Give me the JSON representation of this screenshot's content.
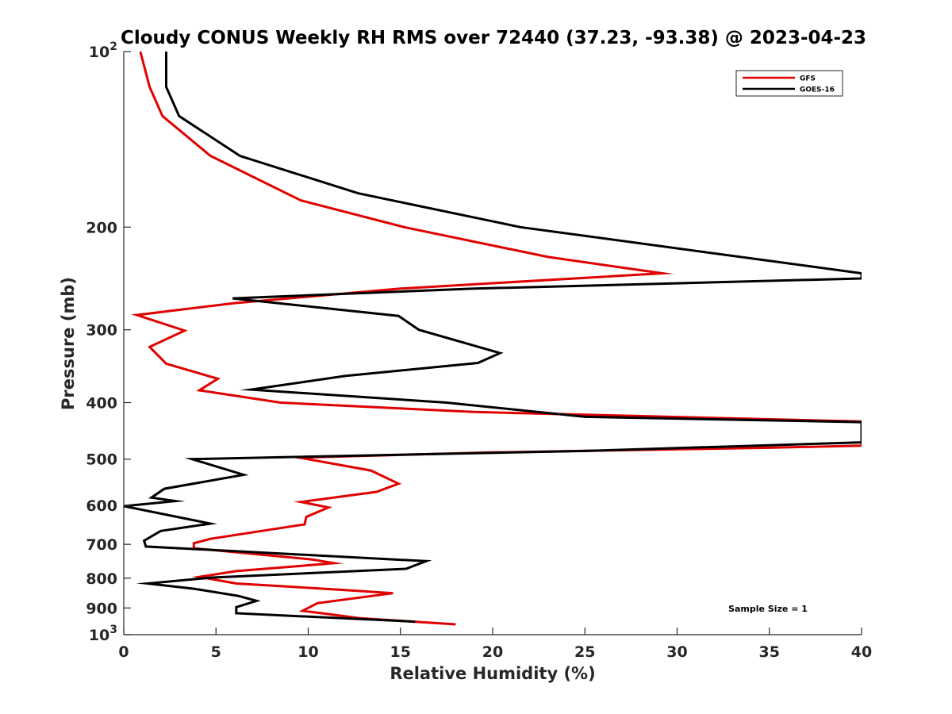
{
  "chart_data": {
    "type": "line",
    "title": "Cloudy CONUS Weekly RH RMS over 72440 (37.23, -93.38) @ 2023-04-23",
    "xlabel": "Relative Humidity (%)",
    "ylabel": "Pressure (mb)",
    "xlim": [
      0,
      40
    ],
    "ylim": [
      100,
      1000
    ],
    "y_scale": "log",
    "y_reversed": true,
    "x_ticks": [
      "0",
      "5",
      "10",
      "15",
      "20",
      "25",
      "30",
      "35",
      "40"
    ],
    "y_ticks": [
      {
        "value": 100,
        "base": "10",
        "exp": "2"
      },
      {
        "value": 200,
        "label": "200"
      },
      {
        "value": 300,
        "label": "300"
      },
      {
        "value": 400,
        "label": "400"
      },
      {
        "value": 500,
        "label": "500"
      },
      {
        "value": 600,
        "label": "600"
      },
      {
        "value": 700,
        "label": "700"
      },
      {
        "value": 800,
        "label": "800"
      },
      {
        "value": 900,
        "label": "900"
      },
      {
        "value": 1000,
        "base": "10",
        "exp": "3"
      }
    ],
    "legend_position": "top-right",
    "annotation": "Sample Size = 1",
    "series": [
      {
        "name": "GFS",
        "color": "#e00000",
        "points": [
          [
            0.9,
            100
          ],
          [
            1.4,
            115
          ],
          [
            2.1,
            129
          ],
          [
            4.7,
            151
          ],
          [
            9.6,
            180
          ],
          [
            15.2,
            200
          ],
          [
            23.0,
            225
          ],
          [
            29.2,
            240
          ],
          [
            15.0,
            255
          ],
          [
            6.0,
            270
          ],
          [
            0.7,
            283
          ],
          [
            3.3,
            301
          ],
          [
            1.4,
            321
          ],
          [
            2.3,
            343
          ],
          [
            5.1,
            364
          ],
          [
            4.1,
            381
          ],
          [
            8.5,
            400
          ],
          [
            19.0,
            415
          ],
          [
            40.0,
            431
          ],
          [
            40.0,
            474
          ],
          [
            35.0,
            478
          ],
          [
            20.0,
            487
          ],
          [
            9.5,
            497
          ],
          [
            13.4,
            523
          ],
          [
            14.9,
            551
          ],
          [
            13.7,
            569
          ],
          [
            9.6,
            592
          ],
          [
            11.1,
            605
          ],
          [
            9.9,
            628
          ],
          [
            9.8,
            647
          ],
          [
            4.7,
            685
          ],
          [
            3.8,
            697
          ],
          [
            3.8,
            711
          ],
          [
            10.2,
            743
          ],
          [
            11.4,
            754
          ],
          [
            6.1,
            778
          ],
          [
            4.1,
            796
          ],
          [
            6.1,
            817
          ],
          [
            11.9,
            838
          ],
          [
            14.6,
            849
          ],
          [
            10.5,
            883
          ],
          [
            9.7,
            910
          ],
          [
            12.8,
            937
          ],
          [
            18.0,
            960
          ]
        ]
      },
      {
        "name": "GOES-16",
        "color": "#000000",
        "points": [
          [
            2.3,
            100
          ],
          [
            2.3,
            115
          ],
          [
            3.0,
            129
          ],
          [
            6.3,
            151
          ],
          [
            12.7,
            175
          ],
          [
            21.5,
            200
          ],
          [
            40.0,
            240
          ],
          [
            40.0,
            245
          ],
          [
            19.0,
            255
          ],
          [
            5.9,
            265
          ],
          [
            14.9,
            284
          ],
          [
            16.0,
            300
          ],
          [
            20.4,
            329
          ],
          [
            19.2,
            342
          ],
          [
            12.0,
            360
          ],
          [
            6.9,
            380
          ],
          [
            17.5,
            400
          ],
          [
            25.0,
            423
          ],
          [
            40.0,
            432
          ],
          [
            40.0,
            468
          ],
          [
            25.0,
            484
          ],
          [
            3.7,
            500
          ],
          [
            6.5,
            532
          ],
          [
            2.2,
            562
          ],
          [
            1.5,
            582
          ],
          [
            2.8,
            590
          ],
          [
            0.0,
            602
          ],
          [
            4.7,
            645
          ],
          [
            2.0,
            664
          ],
          [
            1.1,
            690
          ],
          [
            1.2,
            706
          ],
          [
            16.4,
            748
          ],
          [
            15.3,
            771
          ],
          [
            4.8,
            798
          ],
          [
            1.3,
            817
          ],
          [
            3.8,
            834
          ],
          [
            6.2,
            858
          ],
          [
            7.2,
            875
          ],
          [
            6.1,
            897
          ],
          [
            6.1,
            919
          ],
          [
            15.8,
            950
          ]
        ]
      }
    ]
  }
}
